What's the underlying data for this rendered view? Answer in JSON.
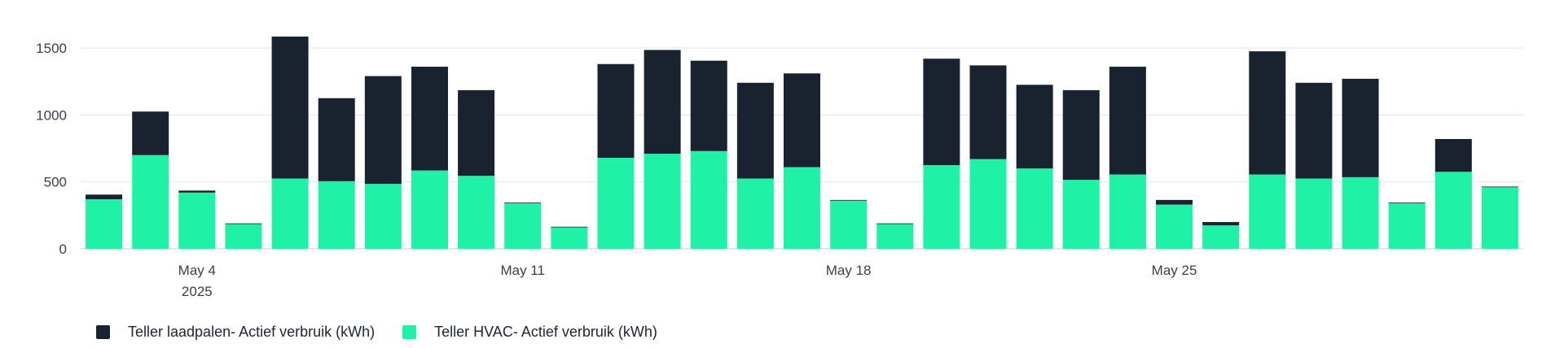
{
  "chart_data": {
    "type": "bar",
    "stacked": true,
    "categories": [
      "2025-05-02",
      "2025-05-03",
      "2025-05-04",
      "2025-05-05",
      "2025-05-06",
      "2025-05-07",
      "2025-05-08",
      "2025-05-09",
      "2025-05-10",
      "2025-05-11",
      "2025-05-12",
      "2025-05-13",
      "2025-05-14",
      "2025-05-15",
      "2025-05-16",
      "2025-05-17",
      "2025-05-18",
      "2025-05-19",
      "2025-05-20",
      "2025-05-21",
      "2025-05-22",
      "2025-05-23",
      "2025-05-24",
      "2025-05-25",
      "2025-05-26",
      "2025-05-27",
      "2025-05-28",
      "2025-05-29",
      "2025-05-30",
      "2025-05-31",
      "2025-06-01"
    ],
    "series": [
      {
        "name": "Teller HVAC- Actief verbruik (kWh)",
        "color": "#1ff2a6",
        "values": [
          370,
          700,
          420,
          185,
          525,
          505,
          485,
          585,
          545,
          340,
          160,
          680,
          710,
          730,
          525,
          610,
          360,
          185,
          625,
          670,
          600,
          515,
          555,
          330,
          175,
          555,
          525,
          535,
          340,
          575,
          460
        ]
      },
      {
        "name": "Teller laadpalen- Actief verbruik (kWh)",
        "color": "#19232f",
        "values": [
          35,
          325,
          15,
          5,
          1060,
          620,
          805,
          775,
          640,
          5,
          5,
          700,
          775,
          675,
          715,
          700,
          5,
          5,
          795,
          700,
          625,
          670,
          805,
          35,
          25,
          920,
          715,
          735,
          5,
          245,
          5
        ]
      }
    ],
    "x_tick_labels": [
      {
        "category": "2025-05-04",
        "lines": [
          "May 4",
          "2025"
        ]
      },
      {
        "category": "2025-05-11",
        "lines": [
          "May 11"
        ]
      },
      {
        "category": "2025-05-18",
        "lines": [
          "May 18"
        ]
      },
      {
        "category": "2025-05-25",
        "lines": [
          "May 25"
        ]
      }
    ],
    "y_ticks": [
      0,
      500,
      1000,
      1500
    ],
    "ylim": [
      0,
      1600
    ],
    "grid": true,
    "legend_position": "bottom-left"
  }
}
